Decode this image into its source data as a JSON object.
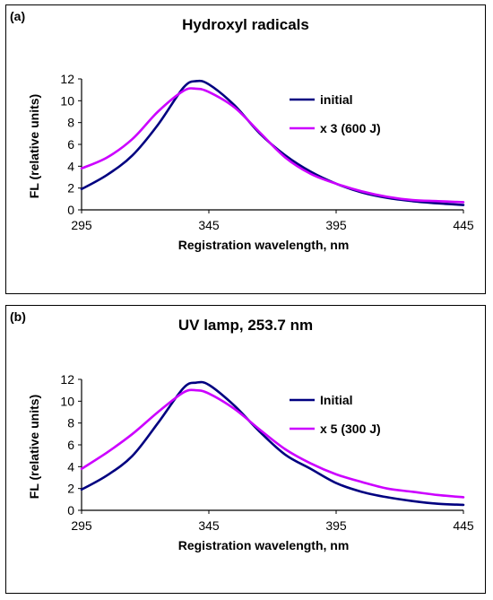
{
  "chart_data": [
    {
      "panel_label": "(a)",
      "type": "line",
      "title": "Hydroxyl radicals",
      "xlabel": "Registration wavelength, nm",
      "ylabel": "FL (relative units)",
      "xlim": [
        295,
        445
      ],
      "ylim": [
        0,
        12
      ],
      "xticks": [
        295,
        345,
        395,
        445
      ],
      "yticks": [
        0,
        2,
        4,
        6,
        8,
        10,
        12
      ],
      "legend_position": "right",
      "series": [
        {
          "name": "initial",
          "color": "#000080",
          "x": [
            295,
            305,
            315,
            325,
            335,
            340,
            345,
            355,
            365,
            375,
            385,
            395,
            405,
            415,
            425,
            435,
            445
          ],
          "y": [
            1.9,
            3.2,
            5.0,
            7.8,
            11.2,
            11.8,
            11.5,
            9.6,
            7.0,
            5.0,
            3.5,
            2.4,
            1.6,
            1.1,
            0.8,
            0.6,
            0.45
          ]
        },
        {
          "name": "x 3 (600 J)",
          "color": "#cc00ff",
          "x": [
            295,
            305,
            315,
            325,
            335,
            340,
            345,
            355,
            365,
            375,
            385,
            395,
            405,
            415,
            425,
            435,
            445
          ],
          "y": [
            3.8,
            4.8,
            6.5,
            9.0,
            10.9,
            11.1,
            10.8,
            9.4,
            7.1,
            4.8,
            3.3,
            2.4,
            1.7,
            1.2,
            0.9,
            0.8,
            0.7
          ]
        }
      ]
    },
    {
      "panel_label": "(b)",
      "type": "line",
      "title": "UV lamp, 253.7 nm",
      "xlabel": "Registration wavelength, nm",
      "ylabel": "FL (relative units)",
      "xlim": [
        295,
        445
      ],
      "ylim": [
        0,
        12
      ],
      "xticks": [
        295,
        345,
        395,
        445
      ],
      "yticks": [
        0,
        2,
        4,
        6,
        8,
        10,
        12
      ],
      "legend_position": "right",
      "series": [
        {
          "name": "Initial",
          "color": "#000080",
          "x": [
            295,
            305,
            315,
            325,
            335,
            340,
            345,
            355,
            365,
            375,
            385,
            395,
            405,
            415,
            425,
            435,
            445
          ],
          "y": [
            1.9,
            3.2,
            5.0,
            8.0,
            11.2,
            11.7,
            11.5,
            9.6,
            7.2,
            5.1,
            3.8,
            2.5,
            1.7,
            1.2,
            0.85,
            0.6,
            0.5
          ]
        },
        {
          "name": "x 5 (300 J)",
          "color": "#cc00ff",
          "x": [
            295,
            305,
            315,
            325,
            335,
            340,
            345,
            355,
            365,
            375,
            385,
            395,
            405,
            415,
            425,
            435,
            445
          ],
          "y": [
            3.8,
            5.3,
            7.0,
            9.0,
            10.8,
            11.0,
            10.7,
            9.3,
            7.4,
            5.6,
            4.3,
            3.3,
            2.6,
            2.0,
            1.7,
            1.4,
            1.2
          ]
        }
      ]
    }
  ]
}
